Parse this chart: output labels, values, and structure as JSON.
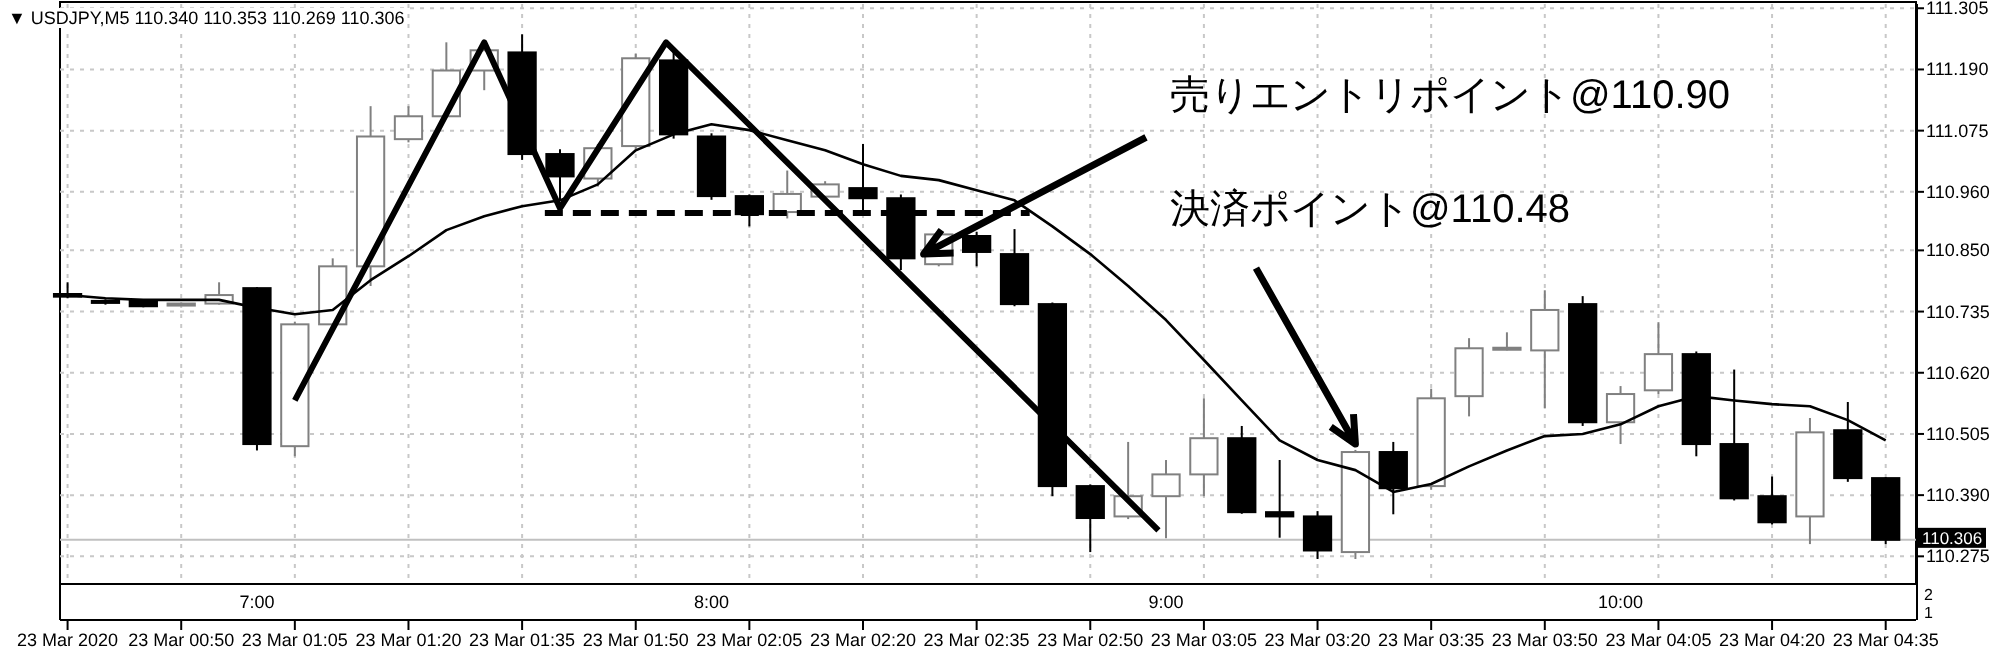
{
  "chart_data": [
    {
      "type": "candlestick",
      "title": "▼ USDJPY,M5  110.340 110.353 110.269 110.306",
      "x": [
        "2020-03-23T00:35",
        "2020-03-23T00:40",
        "2020-03-23T00:45",
        "2020-03-23T00:50",
        "2020-03-23T00:55",
        "2020-03-23T01:00",
        "2020-03-23T01:05",
        "2020-03-23T01:10",
        "2020-03-23T01:15",
        "2020-03-23T01:20",
        "2020-03-23T01:25",
        "2020-03-23T01:30",
        "2020-03-23T01:35",
        "2020-03-23T01:40",
        "2020-03-23T01:45",
        "2020-03-23T01:50",
        "2020-03-23T01:55",
        "2020-03-23T02:00",
        "2020-03-23T02:05",
        "2020-03-23T02:10",
        "2020-03-23T02:15",
        "2020-03-23T02:20",
        "2020-03-23T02:25",
        "2020-03-23T02:30",
        "2020-03-23T02:35",
        "2020-03-23T02:40",
        "2020-03-23T02:45",
        "2020-03-23T02:50",
        "2020-03-23T02:55",
        "2020-03-23T03:00",
        "2020-03-23T03:05",
        "2020-03-23T03:10",
        "2020-03-23T03:15",
        "2020-03-23T03:20",
        "2020-03-23T03:25",
        "2020-03-23T03:30",
        "2020-03-23T03:35",
        "2020-03-23T03:40",
        "2020-03-23T03:45",
        "2020-03-23T03:50",
        "2020-03-23T03:55",
        "2020-03-23T04:00",
        "2020-03-23T04:05",
        "2020-03-23T04:10",
        "2020-03-23T04:15",
        "2020-03-23T04:20",
        "2020-03-23T04:25",
        "2020-03-23T04:30",
        "2020-03-23T04:35"
      ],
      "ohlc": [
        [
          110.768,
          110.79,
          110.76,
          110.763
        ],
        [
          110.755,
          110.758,
          110.748,
          110.752
        ],
        [
          110.755,
          110.757,
          110.743,
          110.745
        ],
        [
          110.748,
          110.752,
          110.746,
          110.75
        ],
        [
          110.75,
          110.79,
          110.748,
          110.766
        ],
        [
          110.779,
          110.781,
          110.474,
          110.486
        ],
        [
          110.482,
          110.716,
          110.463,
          110.711
        ],
        [
          110.711,
          110.835,
          110.71,
          110.82
        ],
        [
          110.82,
          111.121,
          110.783,
          111.064
        ],
        [
          111.059,
          111.121,
          111.053,
          111.102
        ],
        [
          111.102,
          111.241,
          111.1,
          111.188
        ],
        [
          111.188,
          111.24,
          111.151,
          111.226
        ],
        [
          111.222,
          111.256,
          111.02,
          111.031
        ],
        [
          111.031,
          111.04,
          110.944,
          110.989
        ],
        [
          110.985,
          111.05,
          110.97,
          111.042
        ],
        [
          111.046,
          111.22,
          111.04,
          111.211
        ],
        [
          111.207,
          111.23,
          111.06,
          111.068
        ],
        [
          111.064,
          111.07,
          110.945,
          110.952
        ],
        [
          110.952,
          110.955,
          110.895,
          110.918
        ],
        [
          110.922,
          111.0,
          110.91,
          110.956
        ],
        [
          110.951,
          110.98,
          110.945,
          110.974
        ],
        [
          110.967,
          111.05,
          110.918,
          110.948
        ],
        [
          110.948,
          110.955,
          110.813,
          110.835
        ],
        [
          110.824,
          110.89,
          110.82,
          110.88
        ],
        [
          110.877,
          110.885,
          110.82,
          110.847
        ],
        [
          110.843,
          110.89,
          110.745,
          110.749
        ],
        [
          110.749,
          110.752,
          110.388,
          110.407
        ],
        [
          110.407,
          110.41,
          110.283,
          110.347
        ],
        [
          110.35,
          110.49,
          110.345,
          110.388
        ],
        [
          110.388,
          110.456,
          110.309,
          110.429
        ],
        [
          110.429,
          110.572,
          110.388,
          110.497
        ],
        [
          110.497,
          110.52,
          110.355,
          110.358
        ],
        [
          110.358,
          110.456,
          110.31,
          110.35
        ],
        [
          110.35,
          110.36,
          110.27,
          110.286
        ],
        [
          110.283,
          110.475,
          110.27,
          110.471
        ],
        [
          110.471,
          110.49,
          110.354,
          110.403
        ],
        [
          110.407,
          110.59,
          110.4,
          110.572
        ],
        [
          110.576,
          110.685,
          110.538,
          110.666
        ],
        [
          110.666,
          110.696,
          110.662,
          110.667
        ],
        [
          110.662,
          110.775,
          110.553,
          110.738
        ],
        [
          110.749,
          110.764,
          110.52,
          110.527
        ],
        [
          110.527,
          110.595,
          110.486,
          110.58
        ],
        [
          110.587,
          110.715,
          110.58,
          110.655
        ],
        [
          110.655,
          110.66,
          110.463,
          110.486
        ],
        [
          110.486,
          110.626,
          110.38,
          110.384
        ],
        [
          110.388,
          110.425,
          110.335,
          110.339
        ],
        [
          110.35,
          110.535,
          110.298,
          110.508
        ],
        [
          110.512,
          110.565,
          110.415,
          110.422
        ],
        [
          110.422,
          110.424,
          110.298,
          110.306
        ]
      ],
      "series": [
        {
          "type": "line",
          "color": "#000000",
          "values": [
            110.766,
            110.76,
            110.757,
            110.757,
            110.757,
            110.742,
            110.73,
            110.738,
            110.794,
            110.839,
            110.888,
            110.914,
            110.933,
            110.944,
            110.974,
            111.038,
            111.068,
            111.087,
            111.076,
            111.057,
            111.038,
            111.012,
            110.99,
            110.982,
            110.963,
            110.944,
            110.895,
            110.843,
            110.783,
            110.719,
            110.644,
            110.568,
            110.493,
            110.456,
            110.437,
            110.396,
            110.411,
            110.444,
            110.474,
            110.501,
            110.505,
            110.523,
            110.557,
            110.576,
            110.568,
            110.561,
            110.557,
            110.531,
            110.493
          ]
        },
        {
          "type": "line",
          "color": "#000000",
          "x": [
            "2020-03-23T01:05",
            "2020-03-23T01:30",
            "2020-03-23T01:40",
            "2020-03-23T01:54",
            "2020-03-23T02:59"
          ],
          "values": [
            110.568,
            111.241,
            110.929,
            111.241,
            110.324
          ]
        },
        {
          "type": "line",
          "color": "#000000",
          "line_style": "dashed",
          "x": [
            "2020-03-23T01:38",
            "2020-03-23T02:42"
          ],
          "values": [
            110.92,
            110.92
          ]
        }
      ],
      "xlim": [
        "2020-03-23T00:34",
        "2020-03-23T04:39"
      ],
      "xticks": [
        {
          "value": "2020-03-23T00:35",
          "label": "23 Mar 2020"
        },
        {
          "value": "2020-03-23T00:50",
          "label": "23 Mar 00:50"
        },
        {
          "value": "2020-03-23T01:05",
          "label": "23 Mar 01:05"
        },
        {
          "value": "2020-03-23T01:20",
          "label": "23 Mar 01:20"
        },
        {
          "value": "2020-03-23T01:35",
          "label": "23 Mar 01:35"
        },
        {
          "value": "2020-03-23T01:50",
          "label": "23 Mar 01:50"
        },
        {
          "value": "2020-03-23T02:05",
          "label": "23 Mar 02:05"
        },
        {
          "value": "2020-03-23T02:20",
          "label": "23 Mar 02:20"
        },
        {
          "value": "2020-03-23T02:35",
          "label": "23 Mar 02:35"
        },
        {
          "value": "2020-03-23T02:50",
          "label": "23 Mar 02:50"
        },
        {
          "value": "2020-03-23T03:05",
          "label": "23 Mar 03:05"
        },
        {
          "value": "2020-03-23T03:20",
          "label": "23 Mar 03:20"
        },
        {
          "value": "2020-03-23T03:35",
          "label": "23 Mar 03:35"
        },
        {
          "value": "2020-03-23T03:50",
          "label": "23 Mar 03:50"
        },
        {
          "value": "2020-03-23T04:05",
          "label": "23 Mar 04:05"
        },
        {
          "value": "2020-03-23T04:20",
          "label": "23 Mar 04:20"
        },
        {
          "value": "2020-03-23T04:35",
          "label": "23 Mar 04:35"
        }
      ],
      "x2lim": [
        "2020-03-23T00:34",
        "2020-03-23T04:39"
      ],
      "x2ticks": [
        {
          "value": "2020-03-23T01:00",
          "label": "7:00"
        },
        {
          "value": "2020-03-23T02:00",
          "label": "8:00"
        },
        {
          "value": "2020-03-23T03:00",
          "label": "9:00"
        },
        {
          "value": "2020-03-23T04:00",
          "label": "10:00"
        }
      ],
      "ylim": [
        110.223,
        111.313
      ],
      "yticks": [
        {
          "value": 111.305,
          "label": "111.305"
        },
        {
          "value": 111.19,
          "label": "111.190"
        },
        {
          "value": 111.075,
          "label": "111.075"
        },
        {
          "value": 110.96,
          "label": "110.960"
        },
        {
          "value": 110.85,
          "label": "110.850"
        },
        {
          "value": 110.735,
          "label": "110.735"
        },
        {
          "value": 110.62,
          "label": "110.620"
        },
        {
          "value": 110.505,
          "label": "110.505"
        },
        {
          "value": 110.39,
          "label": "110.390"
        },
        {
          "value": 110.275,
          "label": "110.275"
        }
      ],
      "ref_lines": [
        {
          "axis": "y",
          "value": 110.306,
          "label": "110.306",
          "color": "#c0c0c0"
        }
      ],
      "grid": true,
      "annotations": [
        {
          "text": "売りエントリポイント@110.90",
          "x": "2020-03-23T02:28",
          "y": 110.843
        },
        {
          "text": "決済ポイント@110.48",
          "x": "2020-03-23T03:25",
          "y": 110.486
        }
      ]
    },
    {
      "type": "other",
      "annotations": [
        "2",
        "1"
      ]
    }
  ]
}
